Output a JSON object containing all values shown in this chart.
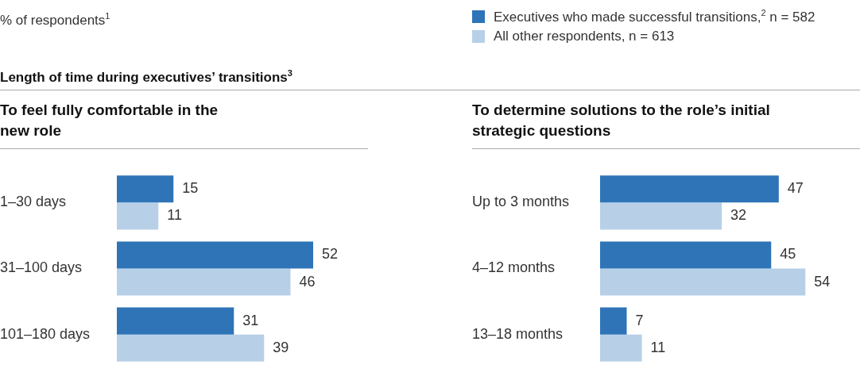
{
  "chart_data": [
    {
      "type": "bar",
      "orientation": "horizontal",
      "title": "To feel fully comfortable in the new role",
      "annotations": [
        "% of respondents$^{1}$",
        "Length of time during executives’ transitions$^{3}$"
      ],
      "categories": [
        "1–30 days",
        "31–100 days",
        "101–180 days"
      ],
      "series": [
        {
          "name": "Executives who made successful transitions,$^{2}$ n = 582",
          "color": "#2e74b7",
          "values": [
            15,
            52,
            31
          ]
        },
        {
          "name": "All other respondents, n = 613",
          "color": "#b7d0e8",
          "values": [
            11,
            46,
            39
          ]
        }
      ],
      "tick_labels": "y",
      "data_labels": true,
      "legend": "top right",
      "grid": false
    },
    {
      "type": "bar",
      "orientation": "horizontal",
      "title": "To determine solutions to the role’s initial strategic questions",
      "categories": [
        "Up to 3 months",
        "4–12 months",
        "13–18 months"
      ],
      "series": [
        {
          "color": "#2e74b7",
          "values": [
            47,
            45,
            7
          ]
        },
        {
          "color": "#b7d0e8",
          "values": [
            32,
            54,
            11
          ]
        }
      ],
      "tick_labels": "y",
      "data_labels": true,
      "grid": false
    }
  ]
}
